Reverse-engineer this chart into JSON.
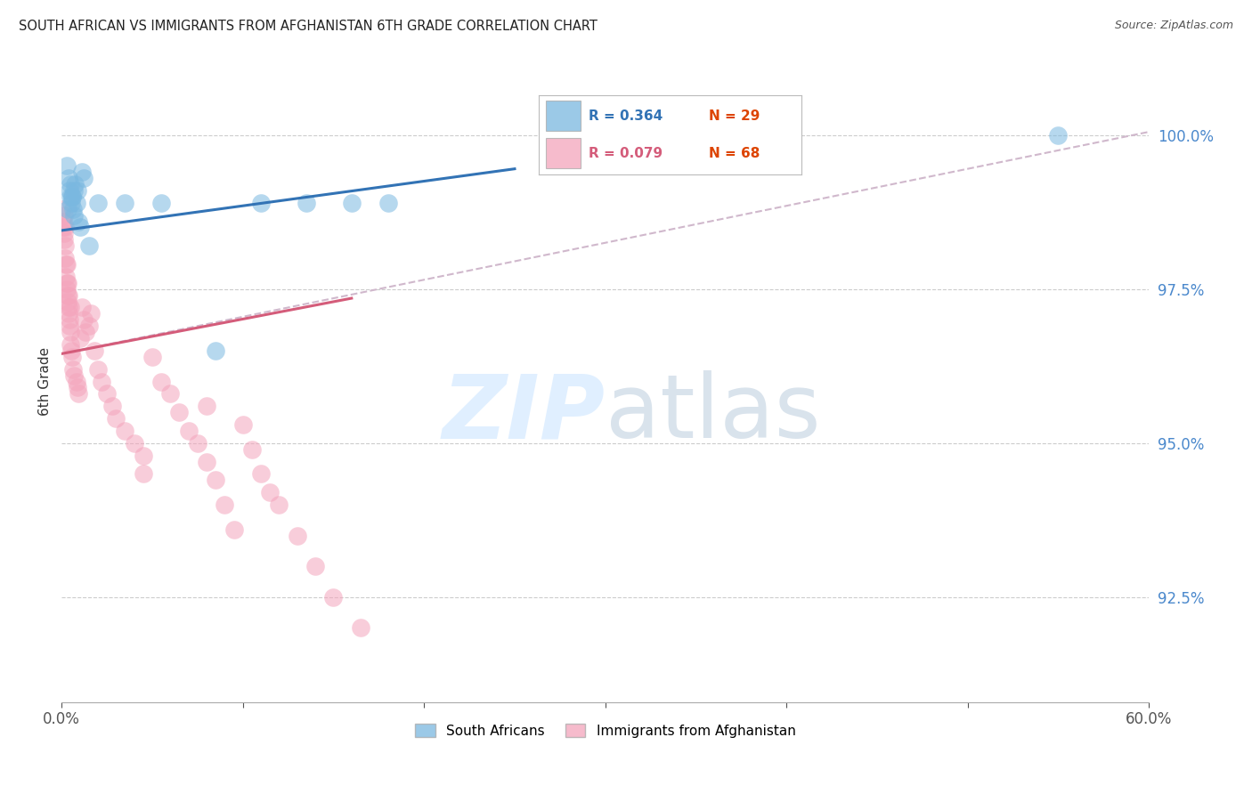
{
  "title": "SOUTH AFRICAN VS IMMIGRANTS FROM AFGHANISTAN 6TH GRADE CORRELATION CHART",
  "source": "Source: ZipAtlas.com",
  "ylabel": "6th Grade",
  "ymin": 90.8,
  "ymax": 101.2,
  "xmin": 0.0,
  "xmax": 60.0,
  "legend_r1": "R = 0.364",
  "legend_n1": "N = 29",
  "legend_r2": "R = 0.079",
  "legend_n2": "N = 68",
  "legend_label1": "South Africans",
  "legend_label2": "Immigrants from Afghanistan",
  "blue_color": "#7ab8e0",
  "pink_color": "#f4a4bc",
  "blue_line_color": "#3273b5",
  "pink_line_color": "#d45c7a",
  "dashed_line_color": "#d0b8cc",
  "axis_label_color": "#4a88cc",
  "ytick_vals": [
    92.5,
    95.0,
    97.5,
    100.0
  ],
  "blue_trend_x0": 0.0,
  "blue_trend_y0": 98.45,
  "blue_trend_x1": 25.0,
  "blue_trend_y1": 99.45,
  "pink_trend_x0": 0.0,
  "pink_trend_y0": 96.45,
  "pink_trend_x1": 16.0,
  "pink_trend_y1": 97.35,
  "dashed_x0": 0.0,
  "dashed_y0": 96.45,
  "dashed_x1": 60.0,
  "dashed_y1": 100.05,
  "sa_x": [
    0.3,
    0.4,
    0.45,
    0.5,
    0.55,
    0.6,
    0.65,
    0.7,
    0.75,
    0.8,
    0.85,
    0.9,
    1.0,
    1.1,
    1.2,
    1.5,
    2.0,
    3.5,
    5.5,
    8.5,
    11.0,
    13.5,
    16.0,
    18.0,
    55.0,
    0.35,
    0.5,
    0.6,
    0.7
  ],
  "sa_y": [
    99.5,
    99.3,
    99.1,
    99.0,
    98.9,
    99.0,
    98.8,
    98.7,
    99.2,
    98.9,
    99.1,
    98.6,
    98.5,
    99.4,
    99.3,
    98.2,
    98.9,
    98.9,
    98.9,
    96.5,
    98.9,
    98.9,
    98.9,
    98.9,
    100.0,
    98.8,
    99.2,
    99.0,
    99.1
  ],
  "af_x": [
    0.05,
    0.08,
    0.1,
    0.12,
    0.15,
    0.15,
    0.18,
    0.2,
    0.2,
    0.22,
    0.25,
    0.28,
    0.3,
    0.3,
    0.32,
    0.35,
    0.35,
    0.38,
    0.4,
    0.4,
    0.42,
    0.45,
    0.48,
    0.5,
    0.5,
    0.55,
    0.6,
    0.65,
    0.7,
    0.8,
    0.85,
    0.9,
    1.0,
    1.1,
    1.2,
    1.3,
    1.5,
    1.6,
    1.8,
    2.0,
    2.2,
    2.5,
    2.8,
    3.0,
    3.5,
    4.0,
    4.5,
    5.0,
    5.5,
    6.0,
    6.5,
    7.0,
    7.5,
    8.0,
    8.5,
    9.0,
    9.5,
    10.0,
    10.5,
    11.0,
    11.5,
    12.0,
    13.0,
    14.0,
    15.0,
    16.5,
    4.5,
    8.0
  ],
  "af_y": [
    98.8,
    98.5,
    98.6,
    98.4,
    98.3,
    98.7,
    98.2,
    98.0,
    98.5,
    97.9,
    97.7,
    97.6,
    97.5,
    97.9,
    97.4,
    97.3,
    97.6,
    97.2,
    97.1,
    97.4,
    97.0,
    96.9,
    96.8,
    96.6,
    97.2,
    96.5,
    96.4,
    96.2,
    96.1,
    96.0,
    95.9,
    95.8,
    96.7,
    97.2,
    97.0,
    96.8,
    96.9,
    97.1,
    96.5,
    96.2,
    96.0,
    95.8,
    95.6,
    95.4,
    95.2,
    95.0,
    94.8,
    96.4,
    96.0,
    95.8,
    95.5,
    95.2,
    95.0,
    94.7,
    94.4,
    94.0,
    93.6,
    95.3,
    94.9,
    94.5,
    94.2,
    94.0,
    93.5,
    93.0,
    92.5,
    92.0,
    94.5,
    95.6
  ]
}
